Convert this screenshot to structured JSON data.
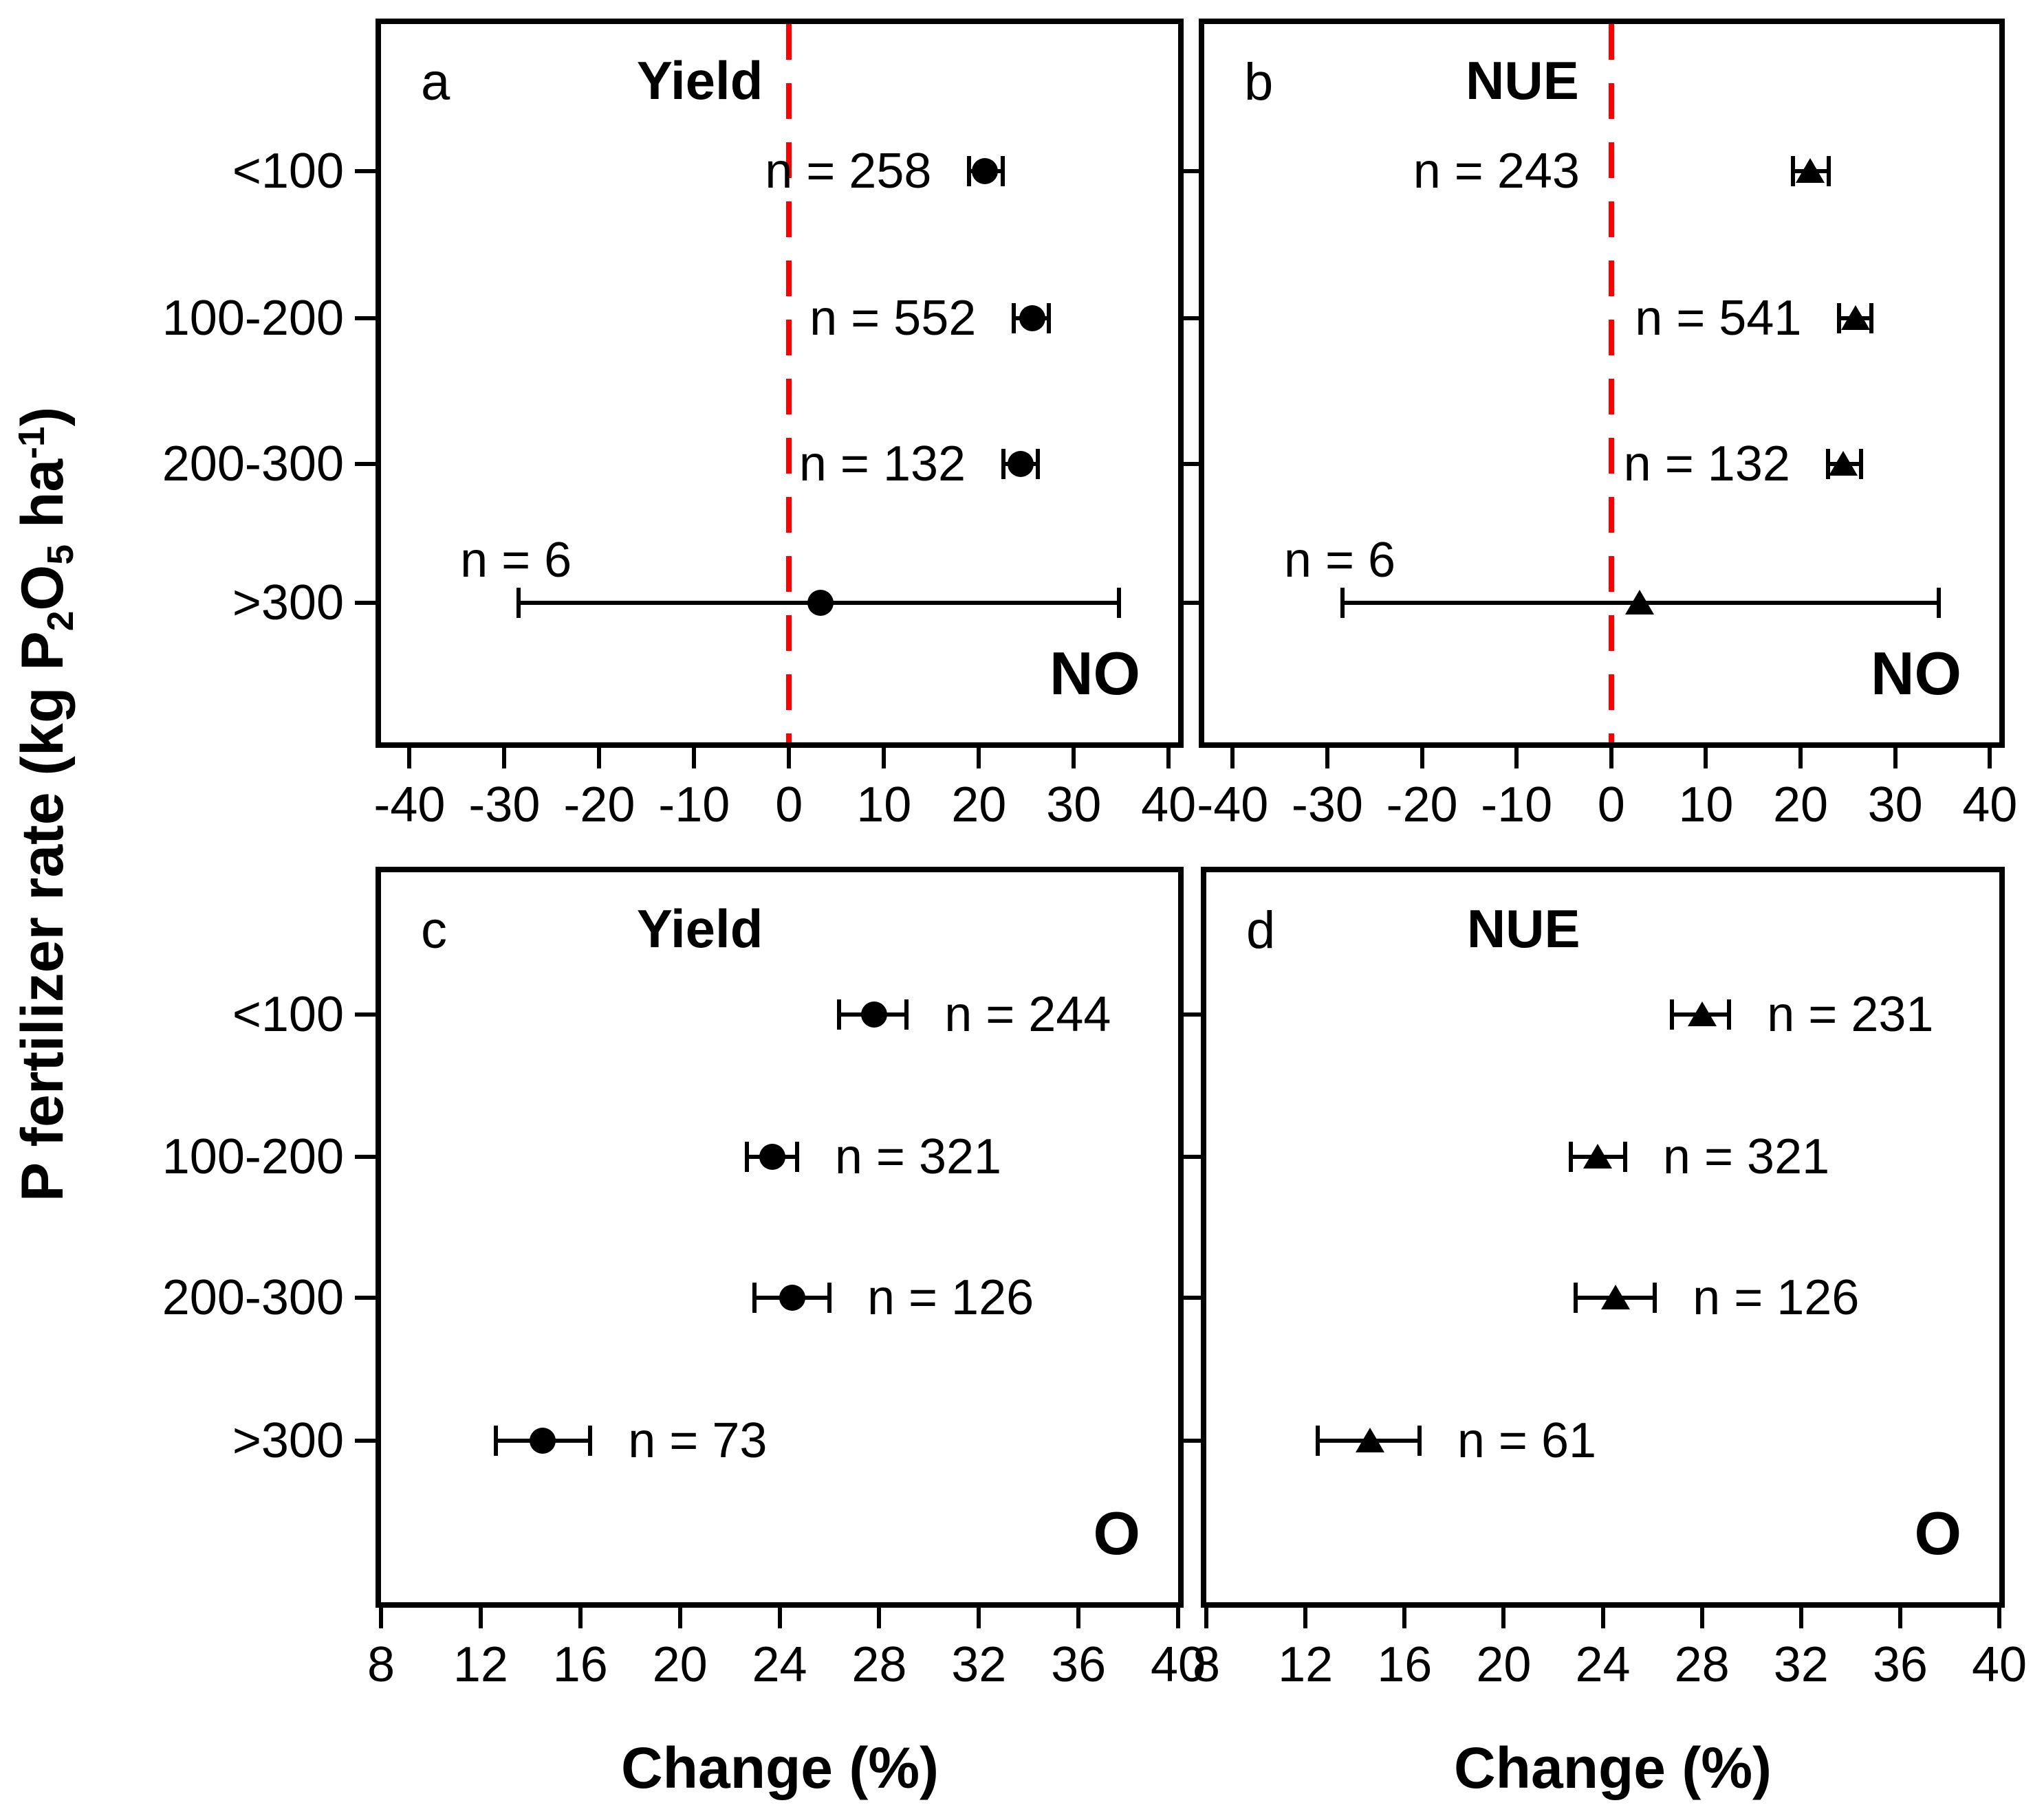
{
  "figure": {
    "background": "#ffffff",
    "ink_color": "#000000",
    "reference_line_color": "#ff0000"
  },
  "y_axis": {
    "label_segments": [
      {
        "t": "P fertilizer rate (kg P"
      },
      {
        "t": "2",
        "style": "sub"
      },
      {
        "t": "O"
      },
      {
        "t": "5",
        "style": "sub"
      },
      {
        "t": " ha"
      },
      {
        "t": "-1",
        "style": "sup"
      },
      {
        "t": ")"
      }
    ],
    "categories": [
      "<100",
      "100-200",
      "200-300",
      ">300"
    ]
  },
  "x_axis": {
    "label_left": "Change  (%)",
    "label_right": "Change (%)"
  },
  "chart_data": [
    {
      "id": "a",
      "letter": "a",
      "title": "Yield",
      "corner_label": "NO",
      "type": "scatter",
      "marker": "circle",
      "xlim": [
        -43,
        41
      ],
      "xticks": [
        -40,
        -30,
        -20,
        -10,
        0,
        10,
        20,
        30,
        40
      ],
      "xtick_labels": [
        "-40",
        "-30",
        "-20",
        "-10",
        "0",
        "10",
        "20",
        "30",
        "40"
      ],
      "zero_line": true,
      "rows": [
        {
          "category": "<100",
          "label": "n = 258",
          "n": 258,
          "value": 20.6,
          "ci_low": 19.0,
          "ci_high": 22.5,
          "label_side": "left"
        },
        {
          "category": "100-200",
          "label": "n = 552",
          "n": 552,
          "value": 25.6,
          "ci_low": 23.7,
          "ci_high": 27.4,
          "label_side": "left"
        },
        {
          "category": "200-300",
          "label": "n = 132",
          "n": 132,
          "value": 24.4,
          "ci_low": 22.6,
          "ci_high": 26.2,
          "label_side": "left"
        },
        {
          "category": ">300",
          "label": "n = 6",
          "n": 6,
          "value": 3.3,
          "ci_low": -28.5,
          "ci_high": 34.8,
          "label_side": "above-left"
        }
      ]
    },
    {
      "id": "b",
      "letter": "b",
      "title": "NUE",
      "corner_label": "NO",
      "type": "scatter",
      "marker": "triangle",
      "xlim": [
        -43,
        41
      ],
      "xticks": [
        -40,
        -30,
        -20,
        -10,
        0,
        10,
        20,
        30,
        40
      ],
      "xtick_labels": [
        "-40",
        "-30",
        "-20",
        "-10",
        "0",
        "10",
        "20",
        "30",
        "40"
      ],
      "zero_line": true,
      "rows": [
        {
          "category": "<100",
          "label": "n = 243",
          "n": 243,
          "value": 21.0,
          "ci_low": 19.2,
          "ci_high": 23.0,
          "label_side": "left",
          "label_gap": 310
        },
        {
          "category": "100-200",
          "label": "n = 541",
          "n": 541,
          "value": 25.8,
          "ci_low": 24.1,
          "ci_high": 27.5,
          "label_side": "left"
        },
        {
          "category": "200-300",
          "label": "n = 132",
          "n": 132,
          "value": 24.5,
          "ci_low": 22.9,
          "ci_high": 26.4,
          "label_side": "left"
        },
        {
          "category": ">300",
          "label": "n = 6",
          "n": 6,
          "value": 3.0,
          "ci_low": -28.4,
          "ci_high": 34.6,
          "label_side": "above-left"
        }
      ]
    },
    {
      "id": "c",
      "letter": "c",
      "title": "Yield",
      "corner_label": "O",
      "type": "scatter",
      "marker": "circle",
      "xlim": [
        8,
        40
      ],
      "xticks": [
        8,
        12,
        16,
        20,
        24,
        28,
        32,
        36,
        40
      ],
      "xtick_labels": [
        "8",
        "12",
        "16",
        "20",
        "24",
        "28",
        "32",
        "36",
        "40"
      ],
      "zero_line": false,
      "rows": [
        {
          "category": "<100",
          "label": "n = 244",
          "n": 244,
          "value": 27.8,
          "ci_low": 26.4,
          "ci_high": 29.1,
          "label_side": "right"
        },
        {
          "category": "100-200",
          "label": "n = 321",
          "n": 321,
          "value": 23.7,
          "ci_low": 22.7,
          "ci_high": 24.7,
          "label_side": "right"
        },
        {
          "category": "200-300",
          "label": "n = 126",
          "n": 126,
          "value": 24.5,
          "ci_low": 23.0,
          "ci_high": 26.0,
          "label_side": "right"
        },
        {
          "category": ">300",
          "label": "n = 73",
          "n": 73,
          "value": 14.5,
          "ci_low": 12.6,
          "ci_high": 16.4,
          "label_side": "right"
        }
      ]
    },
    {
      "id": "d",
      "letter": "d",
      "title": "NUE",
      "corner_label": "O",
      "type": "scatter",
      "marker": "triangle",
      "xlim": [
        8,
        40
      ],
      "xticks": [
        8,
        12,
        16,
        20,
        24,
        28,
        32,
        36,
        40
      ],
      "xtick_labels": [
        "8",
        "12",
        "16",
        "20",
        "24",
        "28",
        "32",
        "36",
        "40"
      ],
      "zero_line": false,
      "rows": [
        {
          "category": "<100",
          "label": "n = 231",
          "n": 231,
          "value": 28.0,
          "ci_low": 26.8,
          "ci_high": 29.1,
          "label_side": "right"
        },
        {
          "category": "100-200",
          "label": "n = 321",
          "n": 321,
          "value": 23.8,
          "ci_low": 22.7,
          "ci_high": 24.9,
          "label_side": "right"
        },
        {
          "category": "200-300",
          "label": "n = 126",
          "n": 126,
          "value": 24.5,
          "ci_low": 22.9,
          "ci_high": 26.1,
          "label_side": "right"
        },
        {
          "category": ">300",
          "label": "n = 61",
          "n": 61,
          "value": 14.6,
          "ci_low": 12.5,
          "ci_high": 16.6,
          "label_side": "right"
        }
      ]
    }
  ]
}
